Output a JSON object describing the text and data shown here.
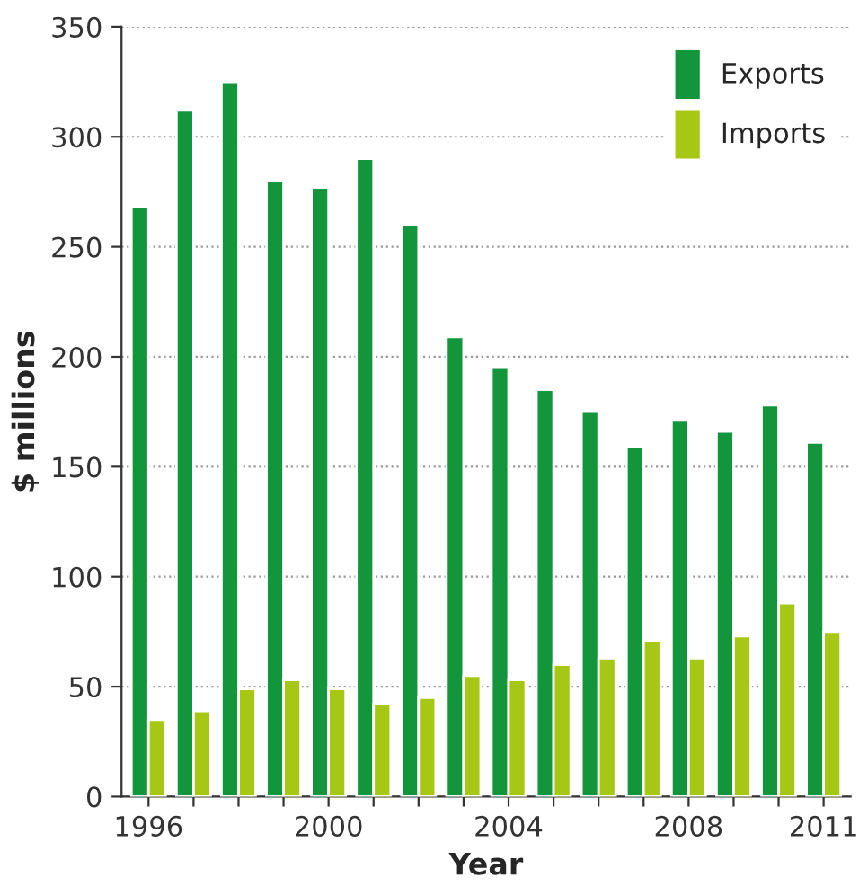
{
  "chart_data": {
    "type": "bar",
    "xlabel": "Year",
    "ylabel": "$ millions",
    "categories": [
      "1996",
      null,
      null,
      null,
      "2000",
      null,
      null,
      null,
      "2004",
      null,
      null,
      null,
      "2008",
      null,
      null,
      "2011"
    ],
    "series": [
      {
        "name": "Exports",
        "color": "#13953c",
        "values": [
          268,
          312,
          325,
          280,
          277,
          290,
          260,
          209,
          195,
          185,
          175,
          159,
          171,
          166,
          178,
          161
        ]
      },
      {
        "name": "Imports",
        "color": "#a6c814",
        "values": [
          35,
          39,
          49,
          53,
          49,
          42,
          45,
          55,
          53,
          60,
          63,
          71,
          63,
          73,
          88,
          75
        ]
      }
    ],
    "ylim": [
      0,
      350
    ],
    "yticks": [
      0,
      50,
      100,
      150,
      200,
      250,
      300,
      350
    ],
    "grid": "y",
    "legend": "top right"
  }
}
